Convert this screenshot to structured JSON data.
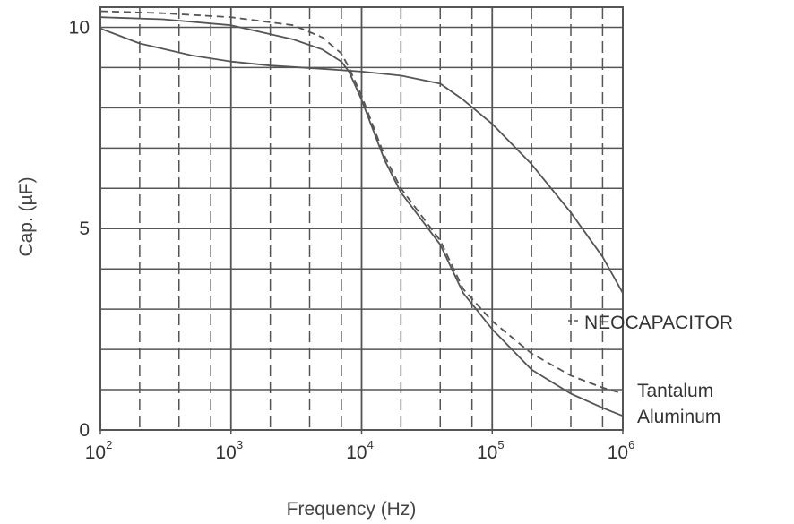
{
  "chart_data": {
    "type": "line",
    "xlabel": "Frequency (Hz)",
    "ylabel": "Cap. (µF)",
    "x_scale": "log",
    "xlim": [
      100,
      1000000
    ],
    "ylim": [
      0,
      10.5
    ],
    "grid": true,
    "x_ticks": [
      {
        "value": 100,
        "base": "10",
        "exp": "2"
      },
      {
        "value": 1000,
        "base": "10",
        "exp": "3"
      },
      {
        "value": 10000,
        "base": "10",
        "exp": "4"
      },
      {
        "value": 100000,
        "base": "10",
        "exp": "5"
      },
      {
        "value": 1000000,
        "base": "10",
        "exp": "6"
      }
    ],
    "y_ticks": [
      {
        "value": 0,
        "label": "0"
      },
      {
        "value": 5,
        "label": "5"
      },
      {
        "value": 10,
        "label": "10"
      }
    ],
    "series": [
      {
        "name": "NEOCAPACITOR",
        "style": "solid",
        "x": [
          100,
          200,
          500,
          1000,
          2000,
          5000,
          10000,
          20000,
          40000,
          60000,
          100000,
          200000,
          400000,
          700000,
          1000000
        ],
        "y": [
          9.97,
          9.6,
          9.3,
          9.15,
          9.05,
          8.97,
          8.9,
          8.8,
          8.6,
          8.2,
          7.6,
          6.6,
          5.4,
          4.3,
          3.4
        ]
      },
      {
        "name": "Tantalum",
        "style": "dashed",
        "x": [
          100,
          300,
          1000,
          3000,
          5000,
          7000,
          8000,
          10000,
          15000,
          20000,
          40000,
          60000,
          100000,
          200000,
          400000,
          700000,
          1000000
        ],
        "y": [
          10.4,
          10.35,
          10.25,
          10.05,
          9.75,
          9.35,
          9.0,
          8.3,
          6.8,
          6.0,
          4.7,
          3.5,
          2.7,
          1.9,
          1.35,
          1.05,
          0.9
        ]
      },
      {
        "name": "Aluminum",
        "style": "solid",
        "x": [
          100,
          300,
          1000,
          3000,
          5000,
          7000,
          8000,
          10000,
          15000,
          20000,
          40000,
          60000,
          100000,
          200000,
          400000,
          700000,
          1000000
        ],
        "y": [
          10.25,
          10.2,
          10.05,
          9.7,
          9.45,
          9.15,
          8.9,
          8.2,
          6.7,
          5.9,
          4.6,
          3.4,
          2.5,
          1.5,
          0.9,
          0.55,
          0.35
        ]
      }
    ],
    "colors": {
      "grid": "#555555",
      "line": "#555555"
    }
  }
}
